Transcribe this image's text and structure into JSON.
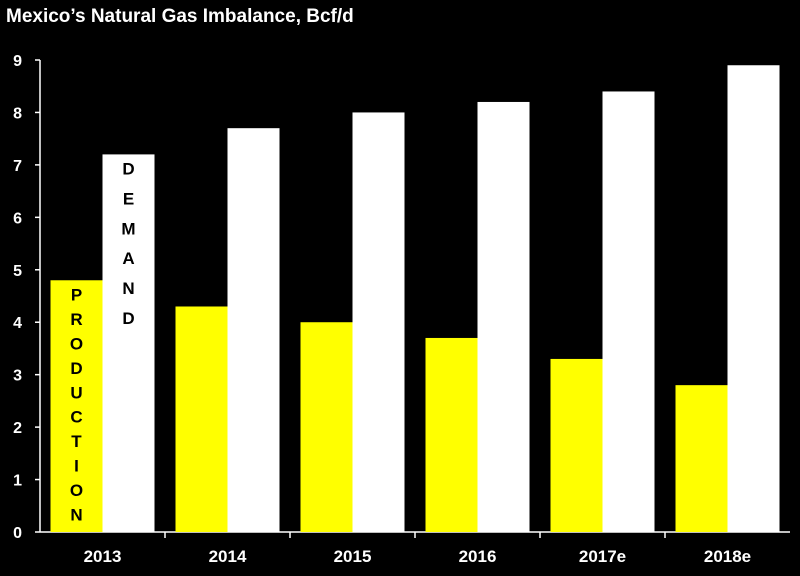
{
  "chart_data": {
    "type": "bar",
    "title": "Mexico’s Natural Gas Imbalance, Bcf/d",
    "categories": [
      "2013",
      "2014",
      "2015",
      "2016",
      "2017e",
      "2018e"
    ],
    "series": [
      {
        "name": "PRODUCTION",
        "color": "#ffff00",
        "values": [
          4.8,
          4.3,
          4.0,
          3.7,
          3.3,
          2.8
        ]
      },
      {
        "name": "DEMAND",
        "color": "#ffffff",
        "values": [
          7.2,
          7.7,
          8.0,
          8.2,
          8.4,
          8.9
        ]
      }
    ],
    "yticks": [
      "0",
      "1",
      "2",
      "3",
      "4",
      "5",
      "6",
      "7",
      "8",
      "9"
    ],
    "ylim": [
      0,
      9
    ],
    "grid": false,
    "legend": "vertical labels inside first category bars",
    "colors": {
      "background": "#000000",
      "axis": "#ffffff",
      "text": "#ffffff"
    }
  }
}
